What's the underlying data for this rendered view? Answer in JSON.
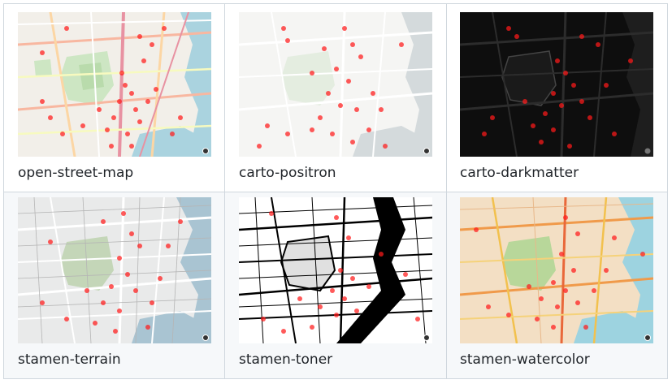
{
  "maps": [
    {
      "id": "osm",
      "caption": "open-street-map",
      "icon": "map-thumbnail",
      "background": "#f2efe9"
    },
    {
      "id": "positron",
      "caption": "carto-positron",
      "icon": "map-thumbnail",
      "background": "#f5f5f3"
    },
    {
      "id": "dark",
      "caption": "carto-darkmatter",
      "icon": "map-thumbnail",
      "background": "#0e0e0e"
    },
    {
      "id": "terrain",
      "caption": "stamen-terrain",
      "icon": "map-thumbnail",
      "background": "#e9eaea"
    },
    {
      "id": "toner",
      "caption": "stamen-toner",
      "icon": "map-thumbnail",
      "background": "#ffffff"
    },
    {
      "id": "watercolor",
      "caption": "stamen-watercolor",
      "icon": "map-thumbnail",
      "background": "#f3dfc4"
    }
  ],
  "marker_color": "#ff1a1a",
  "border_color": "#d0d7de"
}
